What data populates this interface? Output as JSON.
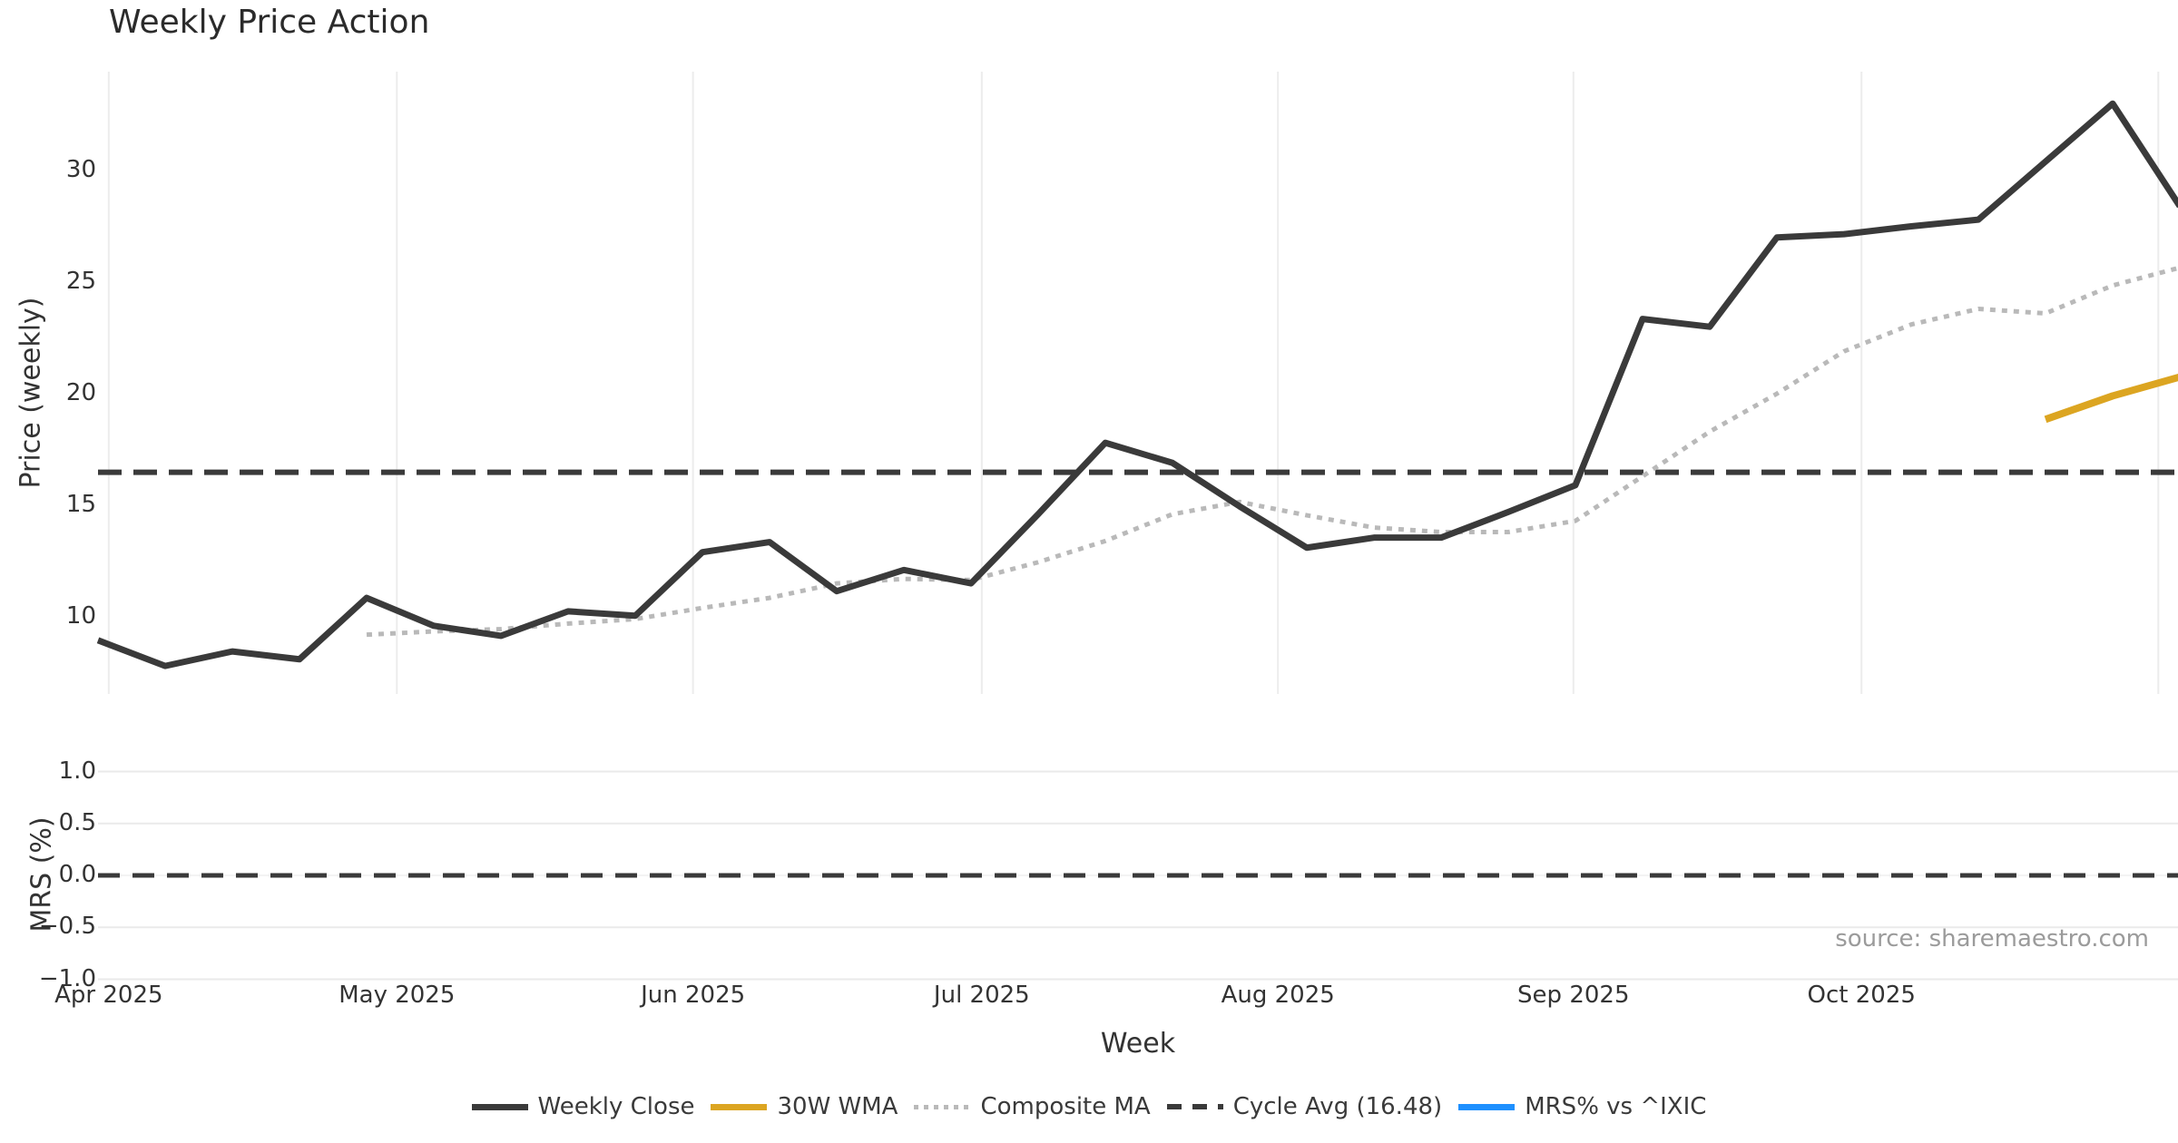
{
  "title": "Weekly Price Action",
  "source_note": "source: sharemaestro.com",
  "colors": {
    "weekly_close": "#3a3a3a",
    "wma_30w": "#DCA521",
    "composite_ma": "#b9b9b9",
    "cycle_avg": "#3a3a3a",
    "mrs_blue": "#1E90FF",
    "gridline": "#ececec",
    "text": "#333333",
    "source_text": "#9b9b9b",
    "background": "#ffffff"
  },
  "legend": [
    {
      "label": "Weekly Close",
      "style": "solid",
      "color": "#3a3a3a",
      "name": "weekly-close"
    },
    {
      "label": "30W WMA",
      "style": "solid",
      "color": "#DCA521",
      "name": "30w-wma"
    },
    {
      "label": "Composite MA",
      "style": "dotted",
      "color": "#b9b9b9",
      "name": "composite-ma"
    },
    {
      "label": "Cycle Avg (16.48)",
      "style": "dashed",
      "color": "#3a3a3a",
      "name": "cycle-avg"
    },
    {
      "label": "MRS% vs ^IXIC",
      "style": "solid",
      "color": "#1E90FF",
      "name": "mrs-vs-ixic"
    }
  ],
  "chart_data": [
    {
      "type": "line",
      "panel": "price",
      "title": "Weekly Price Action",
      "ylabel": "Price (weekly)",
      "xlabel": "Week",
      "grid": "vertical-month-lines",
      "x_start_date": "2025-03-31",
      "x_step_days": 7,
      "n_weeks": 32,
      "ylim": [
        6.5,
        34.5
      ],
      "yticks": [
        10,
        15,
        20,
        25,
        30
      ],
      "ytick_labels": [
        "10",
        "15",
        "20",
        "25",
        "30"
      ],
      "month_ticks": [
        {
          "label": "Apr 2025",
          "week_index": 0.16
        },
        {
          "label": "May 2025",
          "week_index": 4.45
        },
        {
          "label": "Jun 2025",
          "week_index": 8.86
        },
        {
          "label": "Jul 2025",
          "week_index": 13.16
        },
        {
          "label": "Aug 2025",
          "week_index": 17.57
        },
        {
          "label": "Sep 2025",
          "week_index": 21.97
        },
        {
          "label": "Oct 2025",
          "week_index": 26.26
        },
        {
          "label": "",
          "week_index": 30.68
        }
      ],
      "series": [
        {
          "name": "Weekly Close",
          "style": "solid",
          "color": "#3a3a3a",
          "width": 7,
          "start_index": 0,
          "values": [
            8.95,
            7.8,
            8.45,
            8.1,
            10.85,
            9.6,
            9.15,
            10.25,
            10.05,
            12.9,
            13.35,
            11.15,
            12.1,
            11.5,
            14.6,
            17.8,
            16.9,
            14.95,
            13.1,
            13.55,
            13.55,
            14.7,
            15.9,
            23.35,
            23.0,
            27.0,
            27.15,
            27.5,
            27.8,
            30.4,
            33.0,
            28.4
          ]
        },
        {
          "name": "Composite MA",
          "style": "dotted",
          "color": "#b9b9b9",
          "width": 5,
          "start_index": 4,
          "values": [
            9.2,
            9.35,
            9.45,
            9.7,
            9.9,
            10.4,
            10.85,
            11.5,
            11.7,
            11.65,
            12.45,
            13.4,
            14.6,
            15.15,
            14.55,
            14.0,
            13.8,
            13.8,
            14.3,
            16.3,
            18.3,
            20.0,
            21.9,
            23.1,
            23.8,
            23.6,
            24.85,
            25.65
          ]
        },
        {
          "name": "30W WMA",
          "style": "solid",
          "color": "#DCA521",
          "width": 8,
          "start_index": 29,
          "values": [
            18.85,
            19.9,
            20.75
          ]
        },
        {
          "name": "Cycle Avg (16.48)",
          "style": "dashed",
          "color": "#3a3a3a",
          "width": 6,
          "constant": 16.48
        }
      ]
    },
    {
      "type": "line",
      "panel": "mrs",
      "ylabel": "MRS (%)",
      "grid": "horizontal-lines",
      "ylim": [
        -1.15,
        1.15
      ],
      "yticks": [
        1.0,
        0.5,
        0.0,
        -0.5,
        -1.0
      ],
      "ytick_labels": [
        "1.0",
        "0.5",
        "0.0",
        "−0.5",
        "−1.0"
      ],
      "series": [
        {
          "name": "MRS% vs ^IXIC",
          "style": "solid",
          "color": "#1E90FF",
          "visible": false,
          "values_note": "flat at 0.0 across all weeks; not visible (coincides with zero dashed line)"
        },
        {
          "name": "zero-line",
          "style": "dashed",
          "color": "#3a3a3a",
          "width": 5,
          "constant": 0.0
        }
      ]
    }
  ],
  "axis_text": {
    "price_ylabel": "Price (weekly)",
    "mrs_ylabel": "MRS (%)",
    "xlabel": "Week"
  }
}
